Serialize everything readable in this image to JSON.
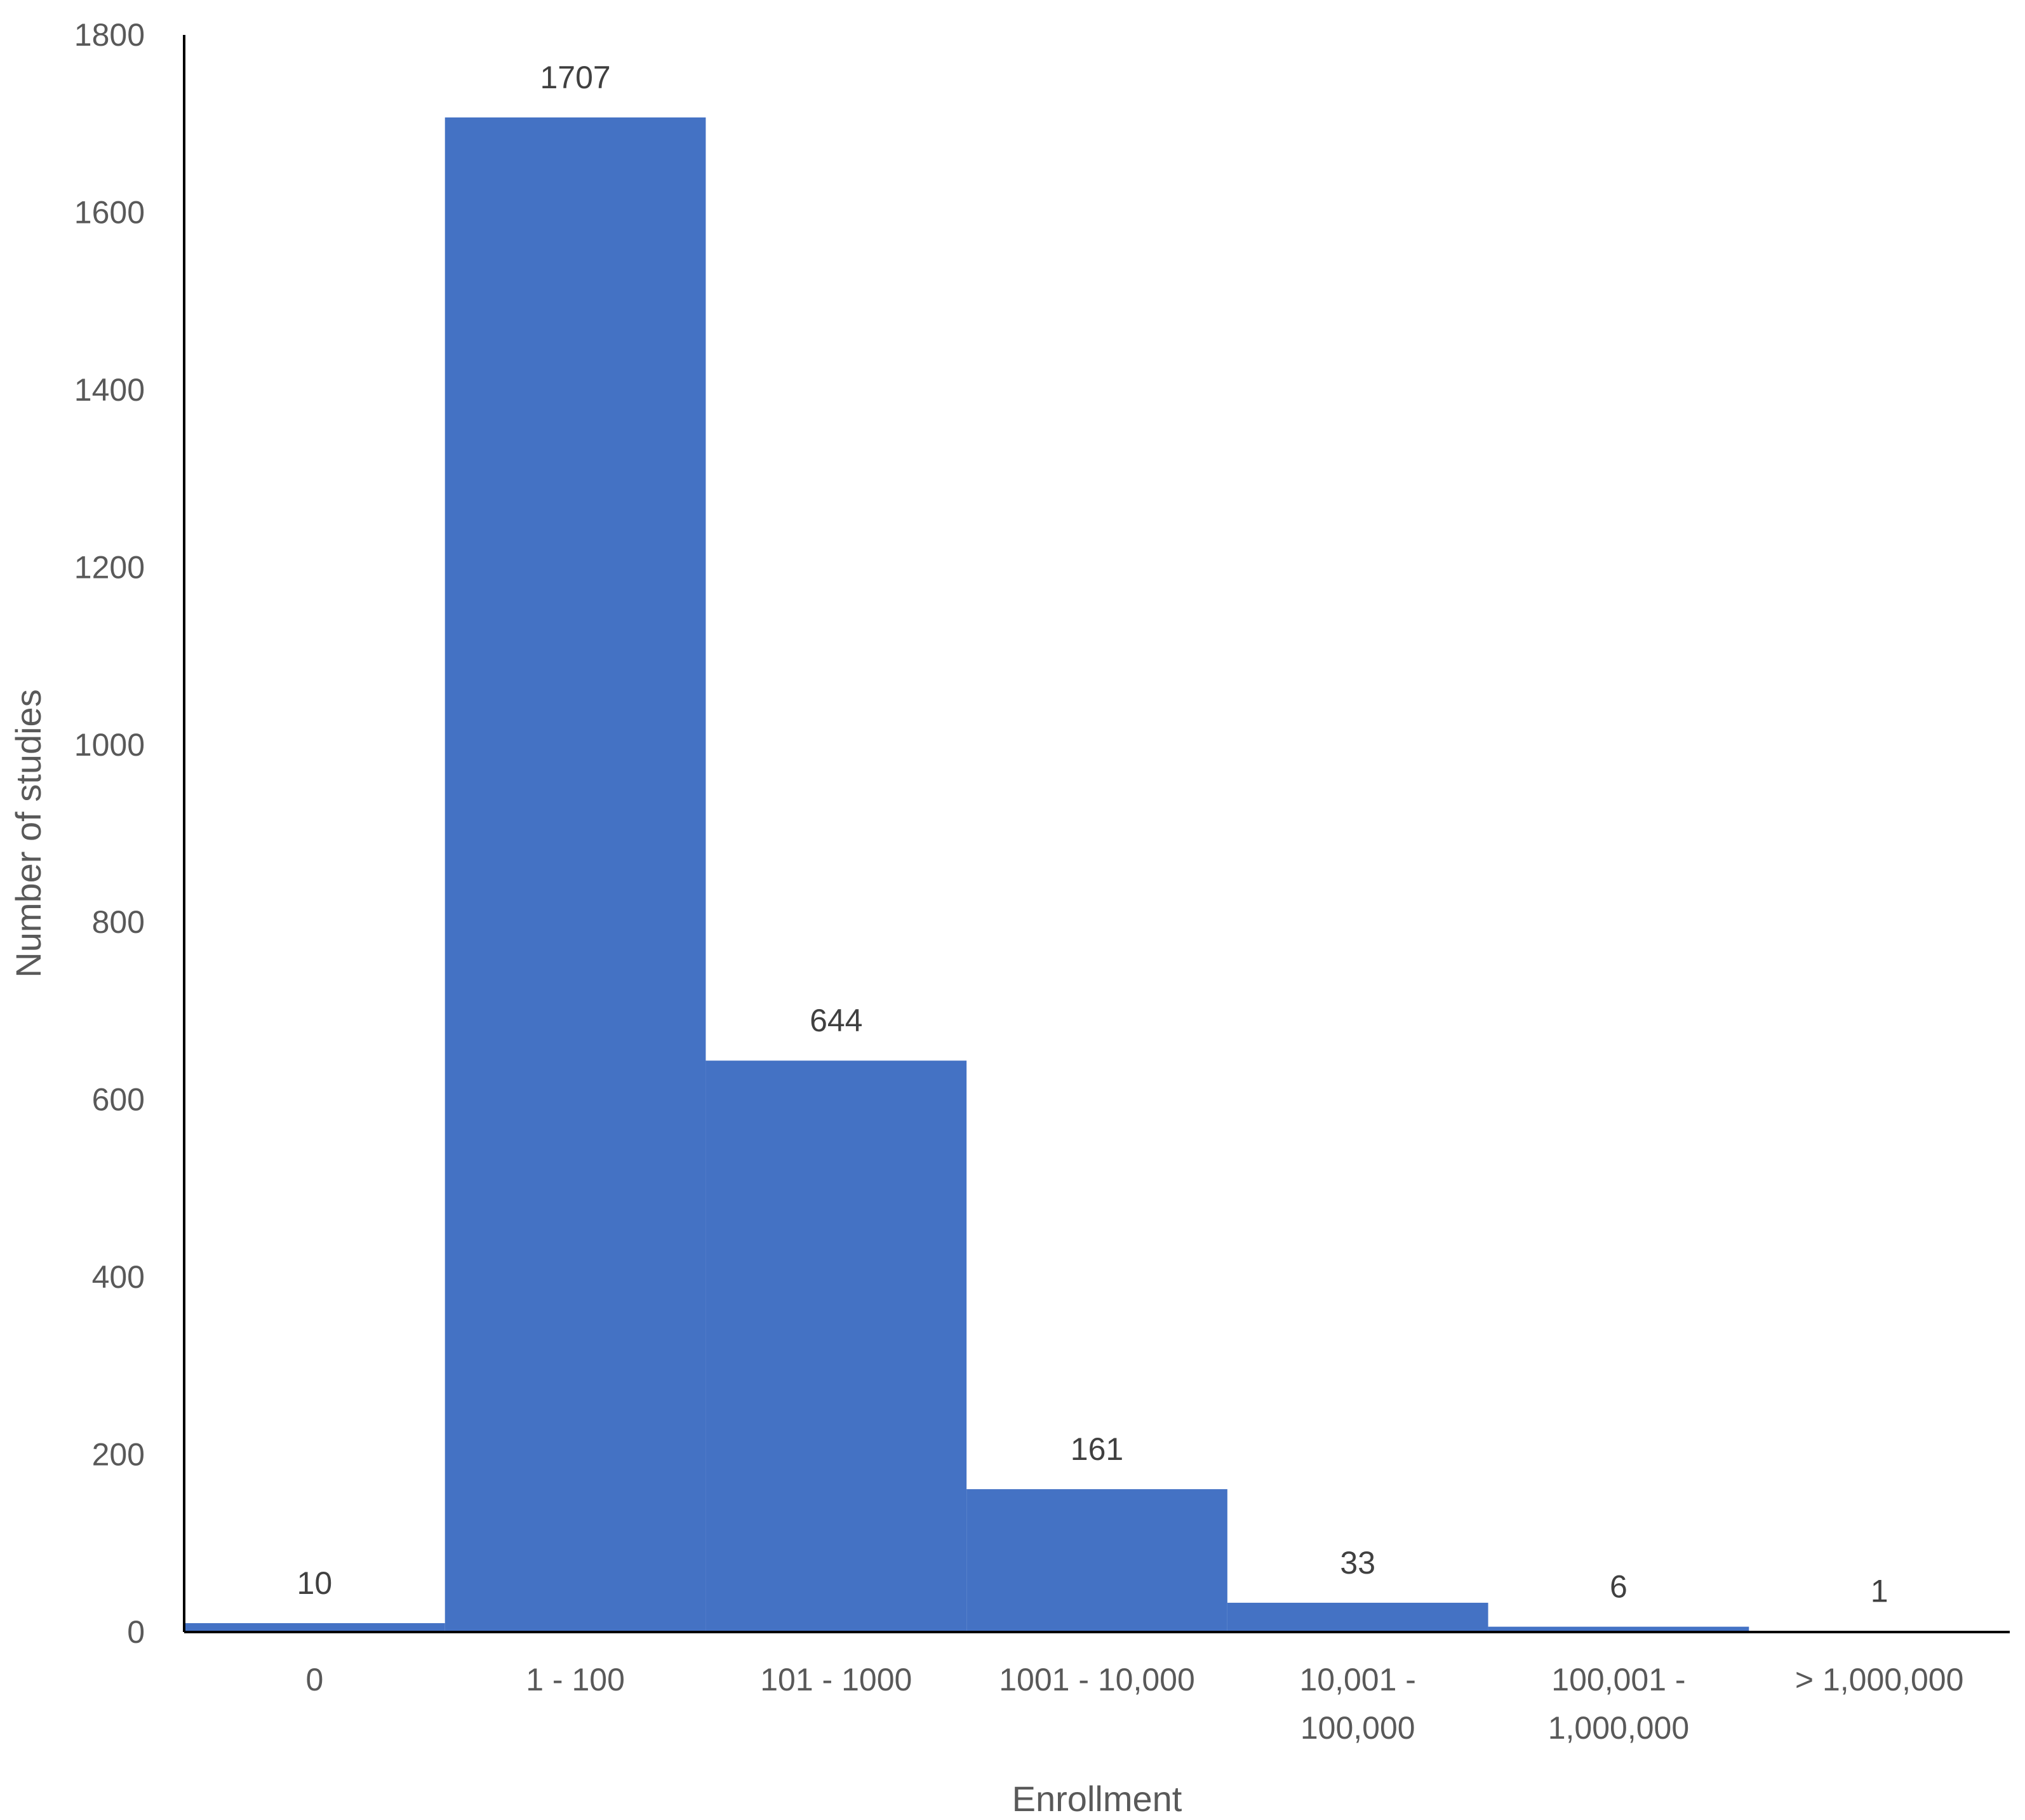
{
  "chart_data": {
    "type": "bar",
    "title": "",
    "xlabel": "Enrollment",
    "ylabel": "Number of studies",
    "categories": [
      [
        "0"
      ],
      [
        "1 - 100"
      ],
      [
        "101 - 1000"
      ],
      [
        "1001 - 10,000"
      ],
      [
        "10,001 -",
        "100,000"
      ],
      [
        "100,001 -",
        "1,000,000"
      ],
      [
        "> 1,000,000"
      ]
    ],
    "values": [
      10,
      1707,
      644,
      161,
      33,
      6,
      1
    ],
    "ylim": [
      0,
      1800
    ],
    "yticks": [
      0,
      200,
      400,
      600,
      800,
      1000,
      1200,
      1400,
      1600,
      1800
    ],
    "grid": false,
    "legend": "none",
    "bar_color": "#4472C4",
    "axis_color": "#000000"
  }
}
